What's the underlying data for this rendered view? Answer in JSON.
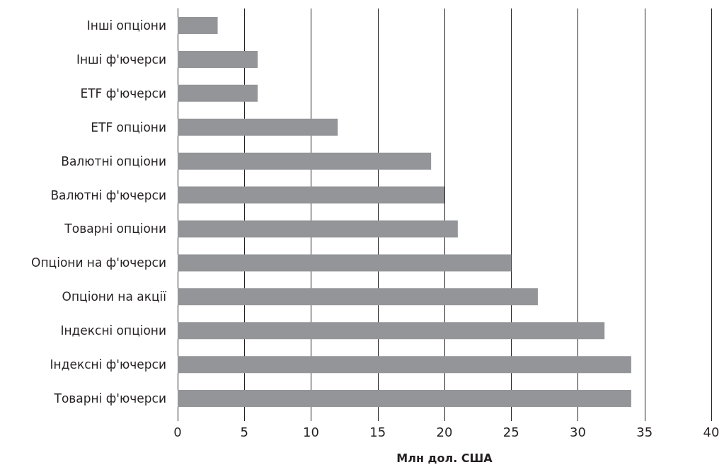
{
  "chart_data": {
    "type": "bar",
    "orientation": "horizontal",
    "xlabel": "Млн дол. США",
    "categories": [
      "Інші опціони",
      "Інші ф'ючерси",
      "ETF ф'ючерси",
      "ETF опціони",
      "Валютні опціони",
      "Валютні ф'ючерси",
      "Товарні опціони",
      "Опціони на ф'ючерси",
      "Опціони на акції",
      "Індексні опціони",
      "Індексні ф'ючерси",
      "Товарні ф'ючерси"
    ],
    "values": [
      3,
      6,
      6,
      12,
      19,
      20,
      21,
      25,
      27,
      32,
      34,
      34
    ],
    "color": "#939598",
    "xlim": [
      0,
      40
    ],
    "xticks": [
      0,
      5,
      10,
      15,
      20,
      25,
      30,
      35,
      40
    ],
    "grid": "x"
  }
}
